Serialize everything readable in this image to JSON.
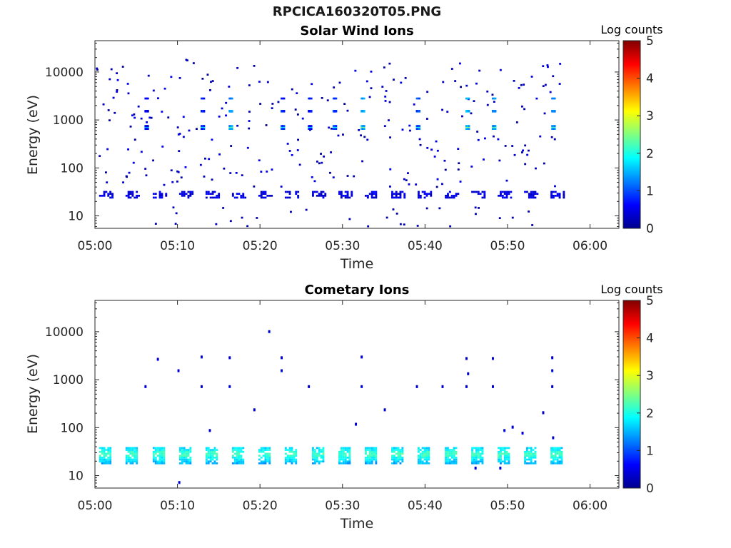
{
  "figure": {
    "title": "RPCICA160320T05.PNG"
  },
  "colormap": {
    "name": "jet",
    "stops": [
      "#00008f",
      "#0000ff",
      "#0080ff",
      "#00ffff",
      "#80ff80",
      "#ffff00",
      "#ff8000",
      "#ff0000",
      "#800000"
    ]
  },
  "chart_data": [
    {
      "type": "heatmap",
      "title": "Solar Wind Ions",
      "xlabel": "Time",
      "ylabel": "Energy (eV)",
      "y_scale": "log",
      "xlim_minutes": [
        0,
        63.5
      ],
      "ylim": [
        5.5,
        45000
      ],
      "x_ticks": [
        "05:00",
        "05:10",
        "05:20",
        "05:30",
        "05:40",
        "05:50",
        "06:00"
      ],
      "y_ticks": [
        "10",
        "100",
        "1000",
        "10000"
      ],
      "colorbar": {
        "label": "Log counts",
        "range": [
          0,
          5
        ],
        "ticks": [
          "0",
          "1",
          "2",
          "3",
          "4",
          "5"
        ]
      },
      "grid": false,
      "sweep_start_minutes": [
        0.5,
        3.7,
        7.0,
        10.2,
        13.4,
        16.6,
        19.8,
        23.0,
        26.3,
        29.5,
        32.7,
        35.9,
        39.1,
        42.4,
        45.6,
        48.8,
        52.0,
        55.2
      ],
      "sweep_peaks": [
        {
          "t": 0.5,
          "energy_eV": 30,
          "log_counts": 0.5
        },
        {
          "t": 3.7,
          "energy_eV": 30,
          "log_counts": 0.5
        },
        {
          "t": 6.0,
          "energy_eV": 700,
          "log_counts": 1.5
        },
        {
          "t": 12.8,
          "energy_eV": 700,
          "log_counts": 1.8
        },
        {
          "t": 16.2,
          "energy_eV": 700,
          "log_counts": 2.3
        },
        {
          "t": 22.5,
          "energy_eV": 700,
          "log_counts": 1.8
        },
        {
          "t": 25.8,
          "energy_eV": 700,
          "log_counts": 1.7
        },
        {
          "t": 28.8,
          "energy_eV": 700,
          "log_counts": 1.9
        },
        {
          "t": 32.2,
          "energy_eV": 700,
          "log_counts": 2.4
        },
        {
          "t": 38.9,
          "energy_eV": 700,
          "log_counts": 2.0
        },
        {
          "t": 44.9,
          "energy_eV": 700,
          "log_counts": 2.5
        },
        {
          "t": 48.1,
          "energy_eV": 700,
          "log_counts": 2.3
        },
        {
          "t": 55.3,
          "energy_eV": 700,
          "log_counts": 2.2
        }
      ]
    },
    {
      "type": "heatmap",
      "title": "Cometary Ions",
      "xlabel": "Time",
      "ylabel": "Energy (eV)",
      "y_scale": "log",
      "xlim_minutes": [
        0,
        63.5
      ],
      "ylim": [
        5.5,
        45000
      ],
      "x_ticks": [
        "05:00",
        "05:10",
        "05:20",
        "05:30",
        "05:40",
        "05:50",
        "06:00"
      ],
      "y_ticks": [
        "10",
        "100",
        "1000",
        "10000"
      ],
      "colorbar": {
        "label": "Log counts",
        "range": [
          0,
          5
        ],
        "ticks": [
          "0",
          "1",
          "2",
          "3",
          "4",
          "5"
        ]
      },
      "grid": false,
      "sweep_start_minutes": [
        0.5,
        3.7,
        7.0,
        10.2,
        13.4,
        16.6,
        19.8,
        23.0,
        26.3,
        29.5,
        32.7,
        35.9,
        39.1,
        42.4,
        45.6,
        48.8,
        52.0,
        55.2
      ],
      "band": {
        "energy_min_eV": 18,
        "energy_max_eV": 40,
        "peak_energy_eV": 28,
        "peak_log_counts": 2.2
      },
      "sweep_peaks": [
        {
          "t": 0.5,
          "energy_eV": 28,
          "log_counts": 2.0
        },
        {
          "t": 7.0,
          "energy_eV": 28,
          "log_counts": 2.2
        },
        {
          "t": 13.4,
          "energy_eV": 28,
          "log_counts": 2.2
        },
        {
          "t": 19.8,
          "energy_eV": 28,
          "log_counts": 2.1
        },
        {
          "t": 26.3,
          "energy_eV": 28,
          "log_counts": 2.2
        },
        {
          "t": 32.7,
          "energy_eV": 28,
          "log_counts": 2.1
        },
        {
          "t": 39.1,
          "energy_eV": 28,
          "log_counts": 2.2
        },
        {
          "t": 45.6,
          "energy_eV": 28,
          "log_counts": 2.2
        },
        {
          "t": 52.0,
          "energy_eV": 28,
          "log_counts": 2.1
        }
      ]
    }
  ]
}
